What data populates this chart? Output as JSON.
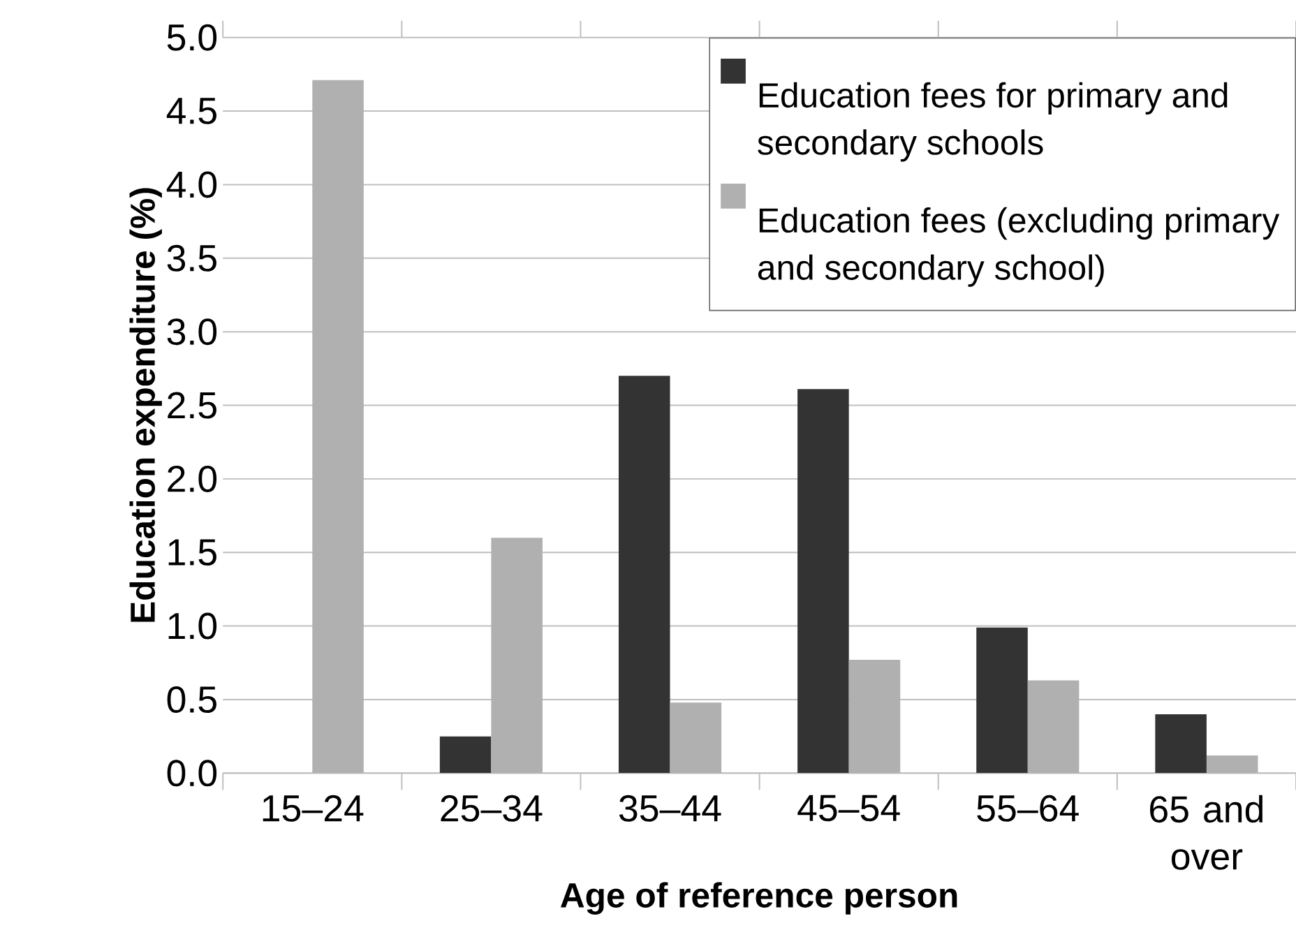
{
  "chart_data": {
    "type": "bar",
    "xlabel": "Age of reference person",
    "ylabel": "Education expenditure (%)",
    "categories": [
      "15–24",
      "25–34",
      "35–44",
      "45–54",
      "55–64",
      "65 and over"
    ],
    "series": [
      {
        "name": "Education fees for primary and secondary schools",
        "color": "#333333",
        "values": [
          0,
          0.25,
          2.7,
          2.61,
          0.99,
          0.4
        ]
      },
      {
        "name": "Education fees (excluding primary and secondary school)",
        "color": "#b0b0b0",
        "values": [
          4.71,
          1.6,
          0.48,
          0.77,
          0.63,
          0.12
        ]
      }
    ],
    "ylim": [
      0,
      5
    ],
    "yticks": [
      {
        "value": 0,
        "label": "0.0"
      },
      {
        "value": 0.5,
        "label": "0.5"
      },
      {
        "value": 1,
        "label": "1.0"
      },
      {
        "value": 1.5,
        "label": "1.5"
      },
      {
        "value": 2,
        "label": "2.0"
      },
      {
        "value": 2.5,
        "label": "2.5"
      },
      {
        "value": 3,
        "label": "3.0"
      },
      {
        "value": 3.5,
        "label": "3.5"
      },
      {
        "value": 4,
        "label": "4.0"
      },
      {
        "value": 4.5,
        "label": "4.5"
      },
      {
        "value": 5,
        "label": "5.0"
      }
    ],
    "grid": "y",
    "legend": "top right"
  }
}
